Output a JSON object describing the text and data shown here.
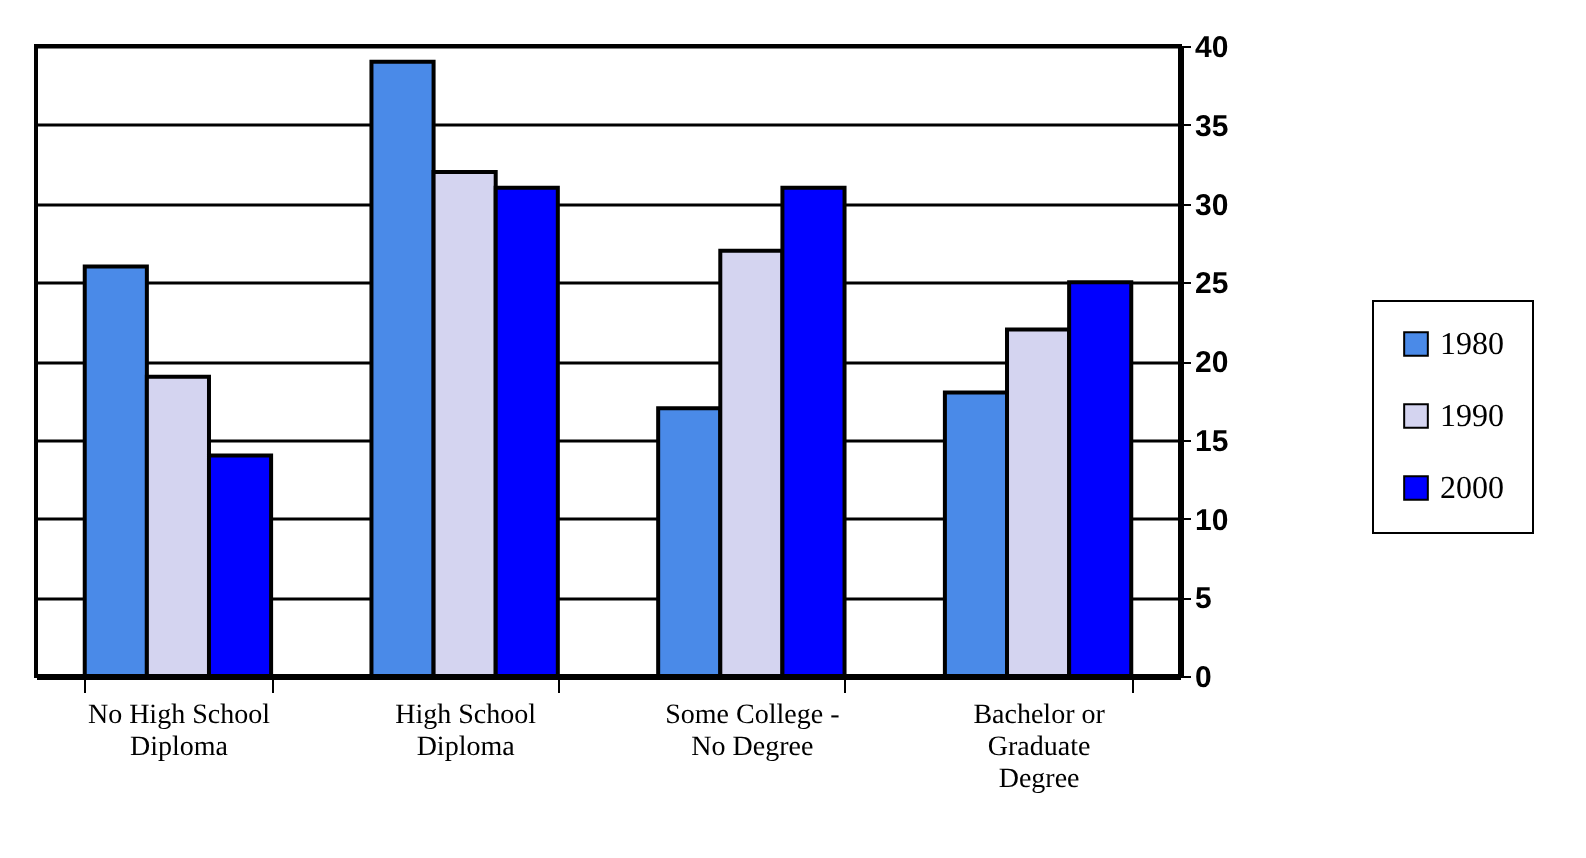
{
  "chart_data": {
    "type": "bar",
    "categories": [
      "No High School Diploma",
      "High School Diploma",
      "Some College - No Degree",
      "Bachelor or Graduate Degree"
    ],
    "series": [
      {
        "name": "1980",
        "color": "#4a8ae8",
        "values": [
          26,
          39,
          17,
          18
        ]
      },
      {
        "name": "1990",
        "color": "#d4d4f0",
        "values": [
          19,
          32,
          27,
          22
        ]
      },
      {
        "name": "2000",
        "color": "#0000ff",
        "values": [
          14,
          31,
          31,
          25
        ]
      }
    ],
    "ylim": [
      0,
      40
    ],
    "yticks": [
      0,
      5,
      10,
      15,
      20,
      25,
      30,
      35,
      40
    ],
    "grid": "y",
    "legend": "right"
  }
}
